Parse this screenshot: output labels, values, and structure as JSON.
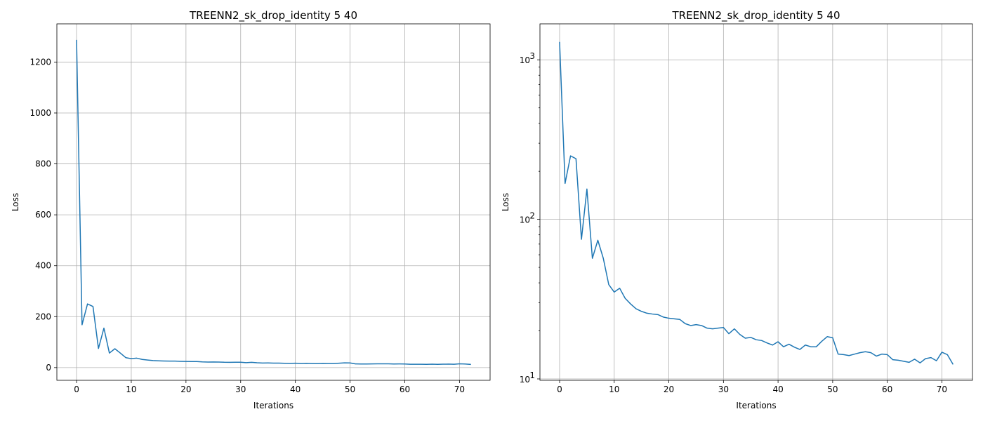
{
  "chart_data": [
    {
      "type": "line",
      "title": "TREENN2_sk_drop_identity 5 40",
      "xlabel": "Iterations",
      "ylabel": "Loss",
      "xscale": "linear",
      "yscale": "linear",
      "grid": true,
      "xlim": [
        -3.6,
        75.6
      ],
      "ylim": [
        -50,
        1350
      ],
      "xticks": [
        0,
        10,
        20,
        30,
        40,
        50,
        60,
        70
      ],
      "xtick_labels": [
        "0",
        "10",
        "20",
        "30",
        "40",
        "50",
        "60",
        "70"
      ],
      "yticks": [
        0,
        200,
        400,
        600,
        800,
        1000,
        1200
      ],
      "ytick_labels": [
        "0",
        "200",
        "400",
        "600",
        "800",
        "1000",
        "1200"
      ],
      "line_color": "#1f77b4",
      "series": [
        {
          "x": [
            0,
            1,
            2,
            3,
            4,
            5,
            6,
            7,
            8,
            9,
            10,
            11,
            12,
            13,
            14,
            15,
            16,
            17,
            18,
            19,
            20,
            21,
            22,
            23,
            24,
            25,
            26,
            27,
            28,
            29,
            30,
            31,
            32,
            33,
            34,
            35,
            36,
            37,
            38,
            39,
            40,
            41,
            42,
            43,
            44,
            45,
            46,
            47,
            48,
            49,
            50,
            51,
            52,
            53,
            54,
            55,
            56,
            57,
            58,
            59,
            60,
            61,
            62,
            63,
            64,
            65,
            66,
            67,
            68,
            69,
            70,
            71,
            72
          ],
          "y": [
            1285,
            168,
            250,
            240,
            75,
            155,
            57,
            74,
            57,
            39,
            35,
            37,
            32,
            29.5,
            27.5,
            26.5,
            25.8,
            25.5,
            25.3,
            24.4,
            24,
            23.8,
            23.6,
            22.2,
            21.6,
            21.9,
            21.6,
            20.8,
            20.6,
            20.8,
            21,
            19.2,
            20.6,
            19,
            18,
            18.2,
            17.6,
            17.4,
            16.8,
            16.3,
            17.1,
            15.9,
            16.5,
            15.8,
            15.3,
            16.3,
            15.9,
            15.9,
            17.2,
            18.4,
            18.1,
            14.3,
            14.2,
            14,
            14.3,
            14.6,
            14.8,
            14.6,
            13.9,
            14.3,
            14.2,
            13.2,
            13.1,
            12.9,
            12.7,
            13.3,
            12.6,
            13.4,
            13.6,
            13,
            14.7,
            14.2,
            12.4
          ]
        }
      ]
    },
    {
      "type": "line",
      "title": "TREENN2_sk_drop_identity 5 40",
      "xlabel": "Iterations",
      "ylabel": "Loss",
      "xscale": "linear",
      "yscale": "log",
      "grid": true,
      "xlim": [
        -3.6,
        75.6
      ],
      "ylim": [
        9.8,
        1680
      ],
      "xticks": [
        0,
        10,
        20,
        30,
        40,
        50,
        60,
        70
      ],
      "xtick_labels": [
        "0",
        "10",
        "20",
        "30",
        "40",
        "50",
        "60",
        "70"
      ],
      "yticks": [
        10,
        100,
        1000
      ],
      "ytick_labels": [
        "10",
        "10",
        "10"
      ],
      "ytick_exponents": [
        "1",
        "2",
        "3"
      ],
      "line_color": "#1f77b4",
      "series": [
        {
          "x": [
            0,
            1,
            2,
            3,
            4,
            5,
            6,
            7,
            8,
            9,
            10,
            11,
            12,
            13,
            14,
            15,
            16,
            17,
            18,
            19,
            20,
            21,
            22,
            23,
            24,
            25,
            26,
            27,
            28,
            29,
            30,
            31,
            32,
            33,
            34,
            35,
            36,
            37,
            38,
            39,
            40,
            41,
            42,
            43,
            44,
            45,
            46,
            47,
            48,
            49,
            50,
            51,
            52,
            53,
            54,
            55,
            56,
            57,
            58,
            59,
            60,
            61,
            62,
            63,
            64,
            65,
            66,
            67,
            68,
            69,
            70,
            71,
            72
          ],
          "y": [
            1285,
            168,
            250,
            240,
            75,
            155,
            57,
            74,
            57,
            39,
            35,
            37,
            32,
            29.5,
            27.5,
            26.5,
            25.8,
            25.5,
            25.3,
            24.4,
            24,
            23.8,
            23.6,
            22.2,
            21.6,
            21.9,
            21.6,
            20.8,
            20.6,
            20.8,
            21,
            19.2,
            20.6,
            19,
            18,
            18.2,
            17.6,
            17.4,
            16.8,
            16.3,
            17.1,
            15.9,
            16.5,
            15.8,
            15.3,
            16.3,
            15.9,
            15.9,
            17.2,
            18.4,
            18.1,
            14.3,
            14.2,
            14,
            14.3,
            14.6,
            14.8,
            14.6,
            13.9,
            14.3,
            14.2,
            13.2,
            13.1,
            12.9,
            12.7,
            13.3,
            12.6,
            13.4,
            13.6,
            13,
            14.7,
            14.2,
            12.4
          ]
        }
      ]
    }
  ]
}
